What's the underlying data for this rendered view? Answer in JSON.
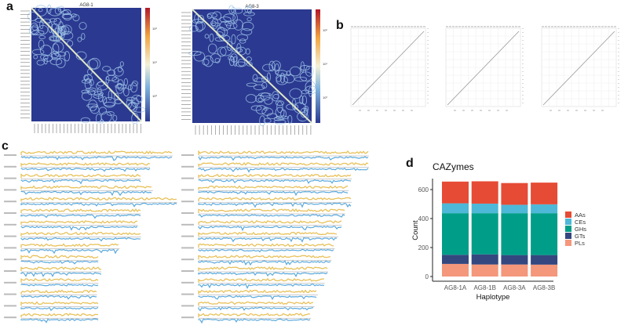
{
  "panels": {
    "a": "a",
    "b": "b",
    "c": "c",
    "d": "d"
  },
  "heatmaps": [
    {
      "title": "AG8-1",
      "colorbar_ticks": [
        "10²",
        "10¹",
        "10⁰"
      ]
    },
    {
      "title": "AG8-3",
      "colorbar_ticks": [
        "10²",
        "10¹",
        "10⁰"
      ]
    }
  ],
  "colors": {
    "heat_low": "#2b3990",
    "heat_mid": "#9fc6e8",
    "track_top": "#e8c15a",
    "track_bottom": "#5aa9dd"
  },
  "chart_data": {
    "type": "bar",
    "stacked": true,
    "title": "CAZymes",
    "xlabel": "Haplotype",
    "ylabel": "Count",
    "ylim": [
      0,
      680
    ],
    "yticks": [
      0,
      200,
      400,
      600
    ],
    "categories": [
      "AG8-1A",
      "AG8-1B",
      "AG8-3A",
      "AG8-3B"
    ],
    "legend_position": "right",
    "series": [
      {
        "name": "PLs",
        "color": "#f4977b",
        "values": [
          87,
          83,
          83,
          82
        ]
      },
      {
        "name": "GTs",
        "color": "#34477f",
        "values": [
          63,
          70,
          65,
          66
        ]
      },
      {
        "name": "GHs",
        "color": "#009e88",
        "values": [
          287,
          284,
          289,
          289
        ]
      },
      {
        "name": "CEs",
        "color": "#4db8d8",
        "values": [
          68,
          66,
          58,
          61
        ]
      },
      {
        "name": "AAs",
        "color": "#e64b35",
        "values": [
          150,
          154,
          150,
          150
        ]
      }
    ],
    "legend_order": [
      "AAs",
      "CEs",
      "GHs",
      "GTs",
      "PLs"
    ]
  },
  "tracks": {
    "left_relative_lengths": [
      1.0,
      0.85,
      0.79,
      0.87,
      1.03,
      0.79,
      0.77,
      0.79,
      0.65,
      0.51,
      0.53,
      0.51,
      0.5,
      0.51,
      0.51
    ],
    "right_relative_lengths": [
      1.0,
      1.0,
      0.9,
      0.88,
      0.9,
      0.86,
      0.84,
      0.82,
      0.8,
      0.78,
      0.76,
      0.74,
      0.7,
      0.68,
      0.66
    ]
  }
}
